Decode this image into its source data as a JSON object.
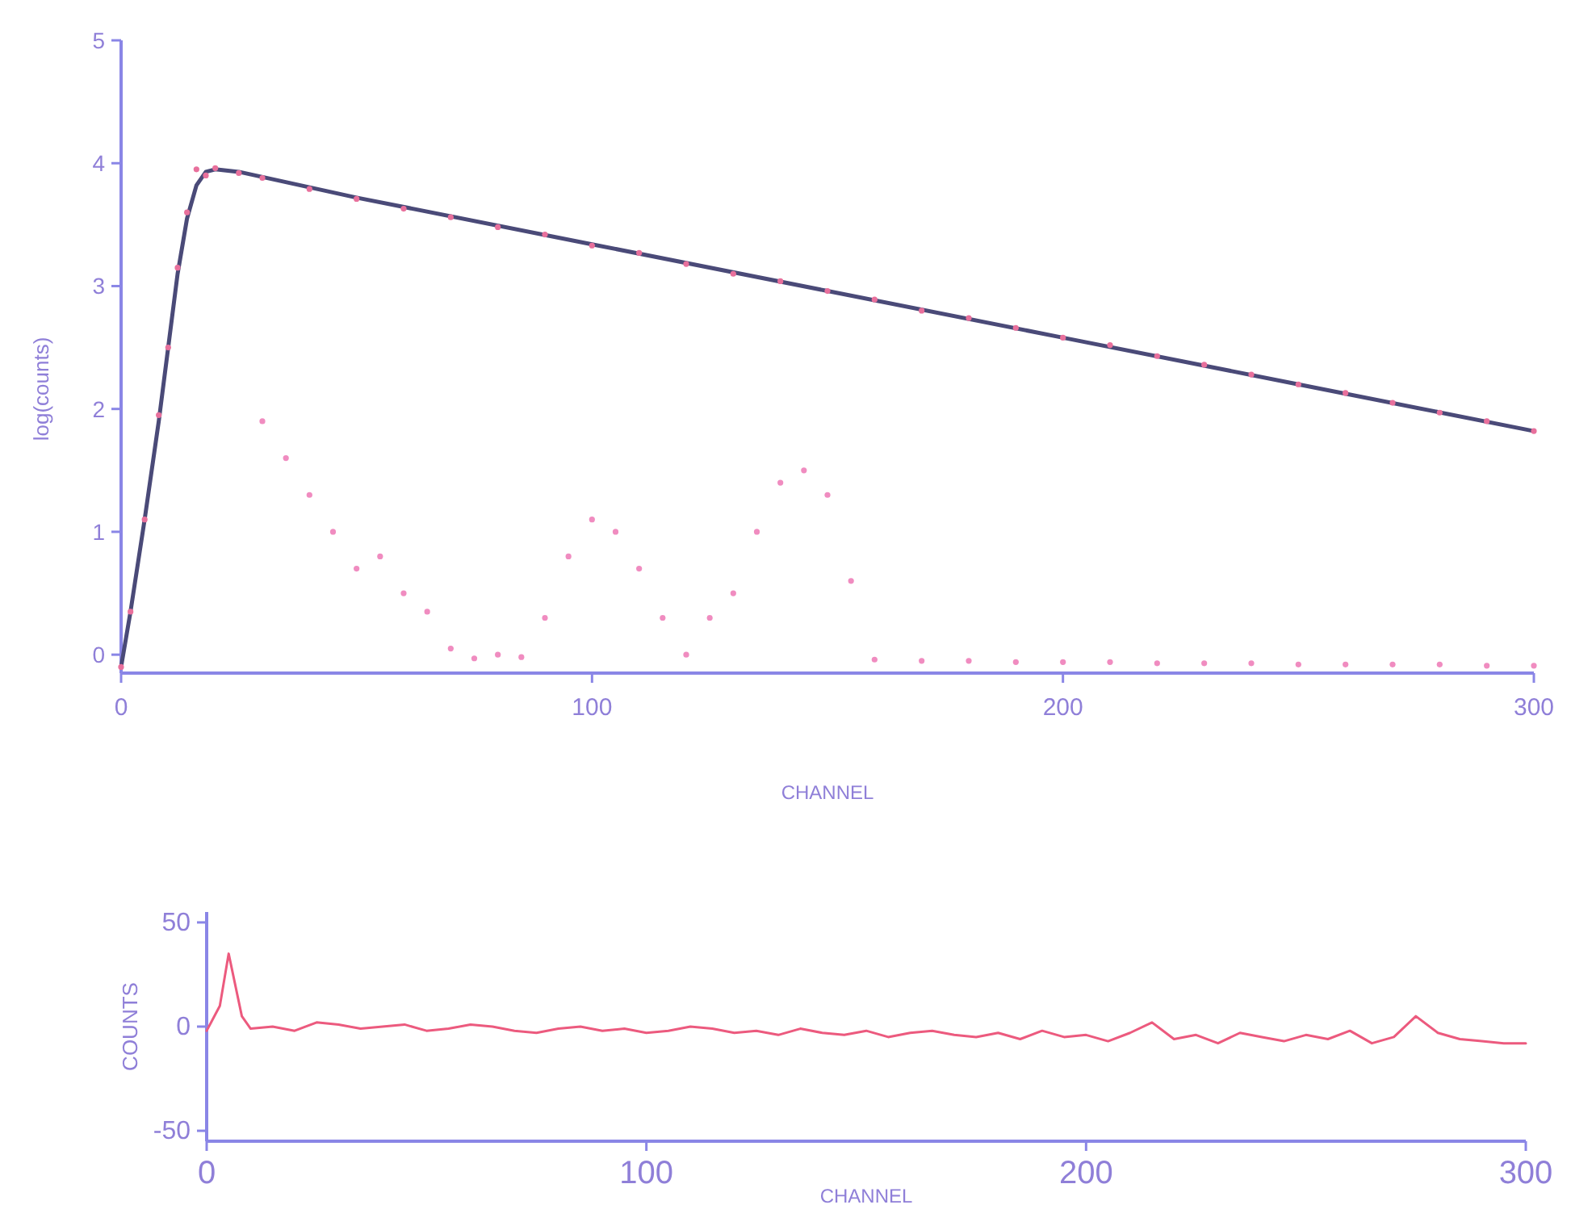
{
  "chart_data": [
    {
      "type": "line",
      "xlabel": "CHANNEL",
      "ylabel": "log(counts)",
      "xlim": [
        0,
        300
      ],
      "ylim": [
        -0.15,
        5
      ],
      "xticks": [
        0,
        100,
        200,
        300
      ],
      "yticks": [
        0,
        1,
        2,
        3,
        4,
        5
      ],
      "grid": false,
      "series": [
        {
          "type": "scatter",
          "color": "#e8709c",
          "marker": "circle",
          "x": [
            0,
            2,
            5,
            8,
            10,
            12,
            14,
            16,
            18,
            20,
            25,
            30,
            40,
            50,
            60,
            70,
            80,
            90,
            100,
            110,
            120,
            130,
            140,
            150,
            160,
            170,
            180,
            190,
            200,
            210,
            220,
            230,
            240,
            250,
            260,
            270,
            280,
            290,
            300
          ],
          "values": [
            -0.1,
            0.35,
            1.1,
            1.95,
            2.5,
            3.15,
            3.6,
            3.95,
            3.9,
            3.96,
            3.92,
            3.88,
            3.79,
            3.71,
            3.63,
            3.56,
            3.48,
            3.42,
            3.33,
            3.27,
            3.18,
            3.1,
            3.04,
            2.96,
            2.89,
            2.8,
            2.74,
            2.66,
            2.58,
            2.52,
            2.43,
            2.36,
            2.28,
            2.2,
            2.13,
            2.05,
            1.97,
            1.9,
            1.82
          ]
        },
        {
          "type": "line",
          "color": "#4a4a78",
          "x": [
            0,
            2,
            5,
            8,
            10,
            12,
            14,
            16,
            18,
            20,
            25,
            50,
            100,
            150,
            200,
            250,
            300
          ],
          "values": [
            -0.1,
            0.35,
            1.1,
            1.9,
            2.5,
            3.1,
            3.55,
            3.82,
            3.93,
            3.95,
            3.93,
            3.72,
            3.34,
            2.96,
            2.58,
            2.2,
            1.82
          ]
        },
        {
          "type": "scatter",
          "color": "#f08cc0",
          "marker": "circle",
          "x": [
            30,
            35,
            40,
            45,
            50,
            55,
            60,
            65,
            70,
            75,
            80,
            85,
            90,
            95,
            100,
            105,
            110,
            115,
            120,
            125,
            130,
            135,
            140,
            145,
            150,
            155,
            160,
            170,
            180,
            190,
            200,
            210,
            220,
            230,
            240,
            250,
            260,
            270,
            280,
            290,
            300
          ],
          "values": [
            1.9,
            1.6,
            1.3,
            1.0,
            0.7,
            0.8,
            0.5,
            0.35,
            0.05,
            -0.03,
            0.0,
            -0.02,
            0.3,
            0.8,
            1.1,
            1.0,
            0.7,
            0.3,
            0.0,
            0.3,
            0.5,
            1.0,
            1.4,
            1.5,
            1.3,
            0.6,
            -0.04,
            -0.05,
            -0.05,
            -0.06,
            -0.06,
            -0.06,
            -0.07,
            -0.07,
            -0.07,
            -0.08,
            -0.08,
            -0.08,
            -0.08,
            -0.09,
            -0.09
          ]
        }
      ]
    },
    {
      "type": "line",
      "xlabel": "CHANNEL",
      "ylabel": "COUNTS",
      "xlim": [
        0,
        300
      ],
      "ylim": [
        -55,
        55
      ],
      "xticks": [
        0,
        100,
        200,
        300
      ],
      "yticks": [
        -50,
        0,
        50
      ],
      "grid": false,
      "series": [
        {
          "color": "#ec5a7e",
          "x": [
            0,
            3,
            5,
            8,
            10,
            15,
            20,
            25,
            30,
            35,
            40,
            45,
            50,
            55,
            60,
            65,
            70,
            75,
            80,
            85,
            90,
            95,
            100,
            105,
            110,
            115,
            120,
            125,
            130,
            135,
            140,
            145,
            150,
            155,
            160,
            165,
            170,
            175,
            180,
            185,
            190,
            195,
            200,
            205,
            210,
            215,
            220,
            225,
            230,
            235,
            240,
            245,
            250,
            255,
            260,
            265,
            270,
            275,
            280,
            285,
            290,
            295,
            300
          ],
          "values": [
            -2,
            10,
            35,
            5,
            -1,
            0,
            -2,
            2,
            1,
            -1,
            0,
            1,
            -2,
            -1,
            1,
            0,
            -2,
            -3,
            -1,
            0,
            -2,
            -1,
            -3,
            -2,
            0,
            -1,
            -3,
            -2,
            -4,
            -1,
            -3,
            -4,
            -2,
            -5,
            -3,
            -2,
            -4,
            -5,
            -3,
            -6,
            -2,
            -5,
            -4,
            -7,
            -3,
            2,
            -6,
            -4,
            -8,
            -3,
            -5,
            -7,
            -4,
            -6,
            -2,
            -8,
            -5,
            5,
            -3,
            -6,
            -7,
            -8,
            -8
          ]
        }
      ]
    }
  ]
}
